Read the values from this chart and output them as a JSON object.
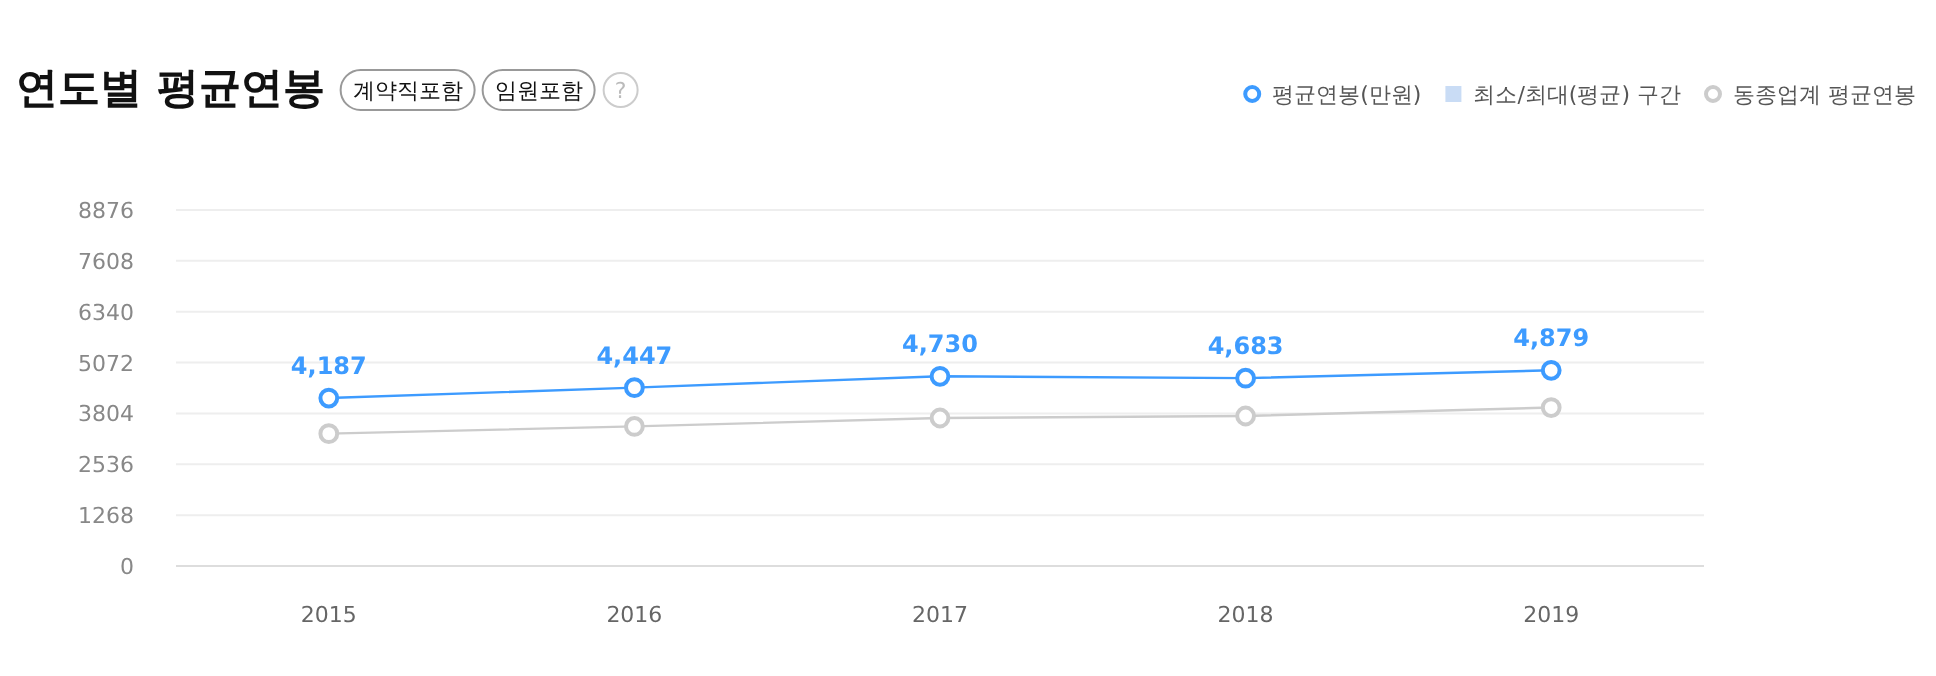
{
  "chart_data": {
    "type": "line",
    "title": "연도별 평균연봉",
    "annotations": [
      "계약직포함",
      "임원포함",
      "?"
    ],
    "categories": [
      "2015",
      "2016",
      "2017",
      "2018",
      "2019"
    ],
    "series": [
      {
        "name": "평균연봉(만원)",
        "color": "#3d9bff",
        "values": [
          4187,
          4447,
          4730,
          4683,
          4879
        ],
        "value_labels": [
          "4,187",
          "4,447",
          "4,730",
          "4,683",
          "4,879"
        ]
      },
      {
        "name": "최소/최대(평균) 구간",
        "type": "area",
        "color": "#c9dcf5",
        "values": [
          null,
          null,
          null,
          null,
          null
        ]
      },
      {
        "name": "동종업계 평균연봉",
        "color": "#cccccc",
        "values": [
          3300,
          3480,
          3690,
          3740,
          3950
        ]
      }
    ],
    "ylim": [
      0,
      8876
    ],
    "yticks": [
      0,
      1268,
      2536,
      3804,
      5072,
      6340,
      7608,
      8876
    ],
    "grid": "y",
    "legend": "top right",
    "marker": "circle"
  }
}
